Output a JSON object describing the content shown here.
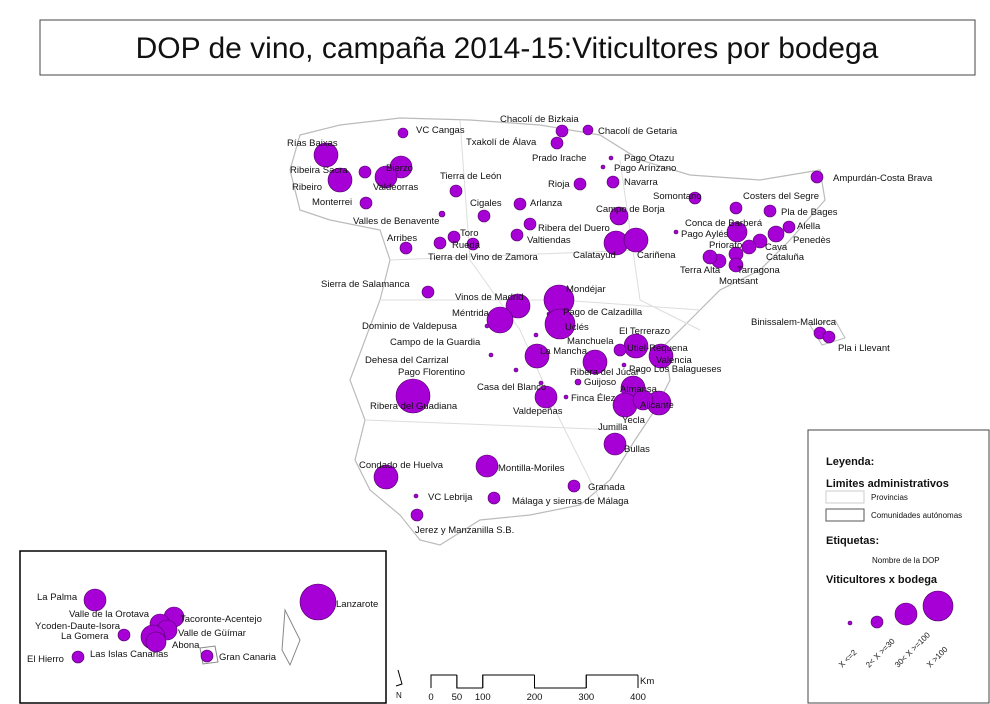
{
  "title": "DOP de vino, campaña 2014-15:Viticultores por bodega",
  "labels": [
    "VC Cangas",
    "Chacolí de Bizkaia",
    "Chacolí de Getaria",
    "Txakolí de Álava",
    "Rías Baixas",
    "Prado Irache",
    "Pago Otazu",
    "Pago Arínzano",
    "Ribeira Sacra",
    "Bierzo",
    "Ribeiro",
    "Valdeorras",
    "Tierra de León",
    "Navarra",
    "Rioja",
    "Monterrei",
    "Arlanza",
    "Somontano",
    "Costers del Segre",
    "Ampurdán-Costa Brava",
    "Cigales",
    "Campo de Borja",
    "Pla de Bages",
    "Valles de Benavente",
    "Conca de Barberá",
    "Alella",
    "Ribera del Duero",
    "Pago Aylés",
    "Penedès",
    "Toro",
    "Valtiendas",
    "Arribes",
    "Rueda",
    "Calatayud",
    "Cariñena",
    "Cava",
    "Priorato",
    "Cataluña",
    "Tierra del Vino de Zamora",
    "Tarragona",
    "Terra Alta",
    "Montsant",
    "Sierra de Salamanca",
    "Mondéjar",
    "Vinos de Madrid",
    "Pago de Calzadilla",
    "Méntrida",
    "Binissalem-Mallorca",
    "Uclés",
    "Dominio de Valdepusa",
    "El Terrerazo",
    "Campo de la Guardia",
    "Pla i Llevant",
    "Utiel-Requena",
    "Manchuela",
    "La Mancha",
    "Valencia",
    "Dehesa del Carrizal",
    "Ribera del Júcar",
    "Pago Los Balagueses",
    "Pago Florentino",
    "Guijoso",
    "Casa del Blanco",
    "Almansa",
    "Ribera del Guadiana",
    "Finca Élez",
    "Alicante",
    "Valdepeñas",
    "Yecla",
    "Jumilla",
    "Bullas",
    "Condado de Huelva",
    "Montilla-Moriles",
    "Granada",
    "VC Lebrija",
    "Málaga y sierras de Málaga",
    "Jerez y Manzanilla S.B."
  ],
  "inset": {
    "labels": [
      "La Palma",
      "Lanzarote",
      "Valle de la Orotava",
      "Tacoronte-Acentejo",
      "Ycoden-Daute-Isora",
      "La Gomera",
      "Valle de Güímar",
      "Abona",
      "Las Islas Canarias",
      "Gran Canaria",
      "El Hierro"
    ]
  },
  "legend": {
    "title": "Leyenda:",
    "admin_title": "Limites administrativos",
    "admin_items": [
      "Provincias",
      "Comunidades autónomas"
    ],
    "labels_title": "Etiquetas:",
    "labels_item": "Nombre de la DOP",
    "bubbles_title": "Viticultores x bodega",
    "classes": [
      "X <=2",
      "2< X >=30",
      "30< X >=100",
      "X >100"
    ]
  },
  "scale": {
    "ticks": [
      0,
      50,
      100,
      200,
      300,
      400
    ],
    "unit": "Km"
  },
  "north": "N"
}
